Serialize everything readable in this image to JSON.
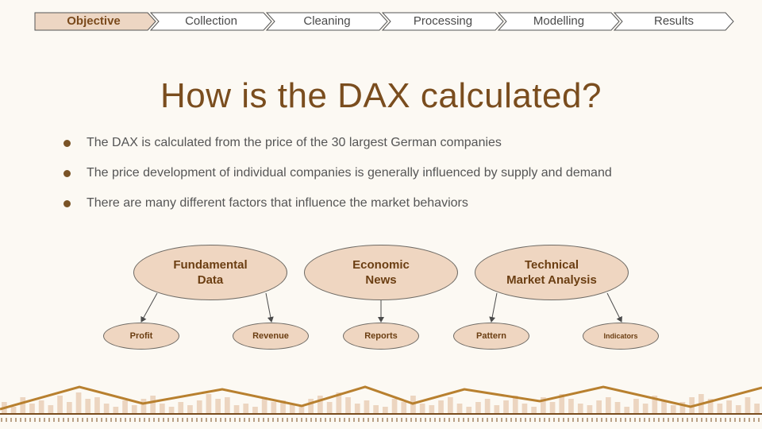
{
  "nav": {
    "steps": [
      {
        "label": "Objective",
        "active": true
      },
      {
        "label": "Collection",
        "active": false
      },
      {
        "label": "Cleaning",
        "active": false
      },
      {
        "label": "Processing",
        "active": false
      },
      {
        "label": "Modelling",
        "active": false
      },
      {
        "label": "Results",
        "active": false
      }
    ],
    "active_fill": "#edd6c3",
    "inactive_fill": "#ffffff"
  },
  "title": "How is the DAX calculated?",
  "bullets": [
    "The DAX is calculated from the price of the 30 largest German companies",
    "The price development of individual companies is generally influenced by supply and demand",
    "There are many different factors that influence the market behaviors"
  ],
  "diagram": {
    "categories": [
      {
        "line1": "Fundamental",
        "line2": "Data"
      },
      {
        "line1": "Economic",
        "line2": "News"
      },
      {
        "line1": "Technical",
        "line2": "Market Analysis"
      }
    ],
    "items": [
      "Profit",
      "Revenue",
      "Reports",
      "Pattern",
      "Indicators"
    ]
  },
  "colors": {
    "accent": "#7a4d1e",
    "ellipse_fill": "#efd6c1",
    "footer_line": "#b8802f",
    "footer_bars": "#ecd5c0",
    "background": "#fcf9f3"
  }
}
